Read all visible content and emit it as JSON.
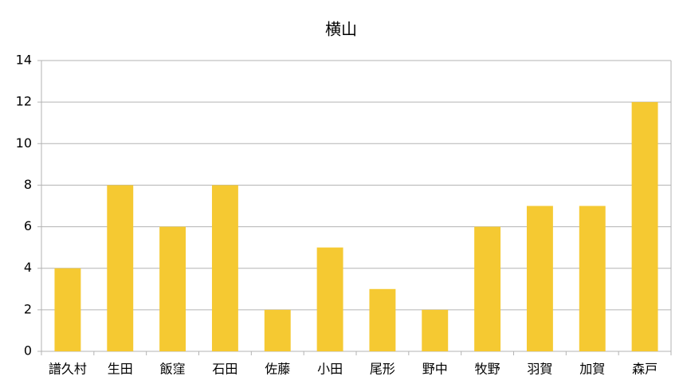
{
  "chart_data": {
    "type": "bar",
    "title": "横山",
    "categories": [
      "譜久村",
      "生田",
      "飯窪",
      "石田",
      "佐藤",
      "小田",
      "尾形",
      "野中",
      "牧野",
      "羽賀",
      "加賀",
      "森戸"
    ],
    "values": [
      4,
      8,
      6,
      8,
      2,
      5,
      3,
      2,
      6,
      7,
      7,
      12
    ],
    "color": "#f5c932",
    "ylim": [
      0,
      14
    ],
    "yticks": [
      0,
      2,
      4,
      6,
      8,
      10,
      12,
      14
    ],
    "grid": true
  }
}
